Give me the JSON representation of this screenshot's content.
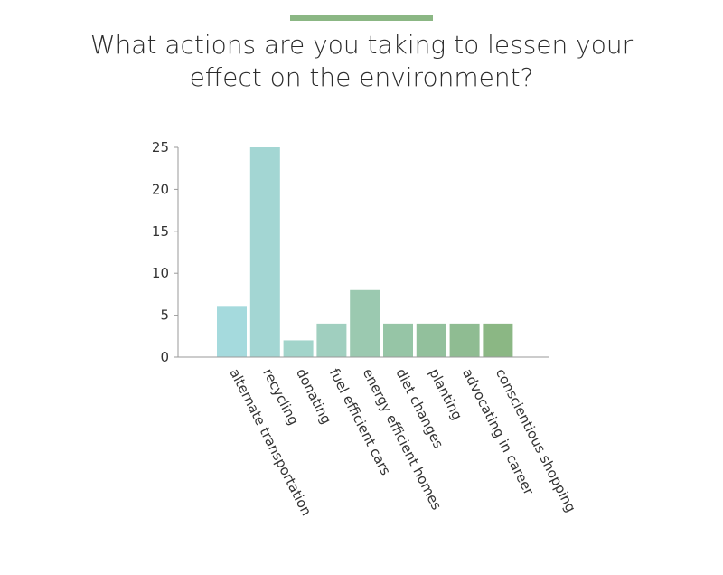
{
  "header": {
    "accent_color": "#8bb784"
  },
  "chart_data": {
    "type": "bar",
    "title_lines": [
      "What actions are you taking to lessen your",
      "effect on the environment?"
    ],
    "categories": [
      "alternate transportation",
      "recycling",
      "donating",
      "fuel efficient cars",
      "energy efficient homes",
      "diet changes",
      "planting",
      "advocating in career",
      "conscientious shopping"
    ],
    "values": [
      6,
      25,
      2,
      4,
      8,
      4,
      4,
      4,
      4
    ],
    "bar_colors": [
      "#a5dadd",
      "#a3d6d3",
      "#a2d4ca",
      "#a0cfbf",
      "#9bc9b0",
      "#96c5a6",
      "#92c09c",
      "#8fbc92",
      "#8bb784"
    ],
    "ylim": [
      0,
      25
    ],
    "yticks": [
      0,
      5,
      10,
      15,
      20,
      25
    ],
    "grid": false,
    "xlabel": "",
    "ylabel": ""
  }
}
